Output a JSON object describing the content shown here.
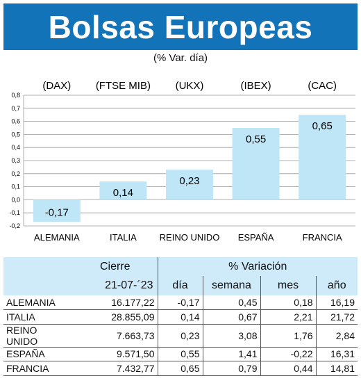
{
  "title": "Bolsas Europeas",
  "subtitle": "(% Var. día)",
  "chart_data": {
    "type": "bar",
    "categories": [
      "ALEMANIA",
      "ITALIA",
      "REINO UNIDO",
      "ESPAÑA",
      "FRANCIA"
    ],
    "indices": [
      "(DAX)",
      "(FTSE MIB)",
      "(UKX)",
      "(IBEX)",
      "(CAC)"
    ],
    "values": [
      -0.17,
      0.14,
      0.23,
      0.55,
      0.65
    ],
    "value_labels": [
      "-0,17",
      "0,14",
      "0,23",
      "0,55",
      "0,65"
    ],
    "ylim": [
      -0.2,
      0.8
    ],
    "yticks": [
      -0.2,
      -0.1,
      0.0,
      0.1,
      0.2,
      0.3,
      0.4,
      0.5,
      0.6,
      0.7,
      0.8
    ],
    "ytick_labels": [
      "-0,2",
      "-0,1",
      "0,0",
      "0,1",
      "0,2",
      "0,3",
      "0,4",
      "0,5",
      "0,6",
      "0,7",
      "0,8"
    ],
    "bar_color": "#bfe6f7",
    "grid": true
  },
  "table": {
    "header_cierre": "Cierre",
    "header_variacion": "% Variación",
    "date": "21-07-´23",
    "columns": [
      "día",
      "semana",
      "mes",
      "año"
    ],
    "rows": [
      {
        "name": "ALEMANIA",
        "cierre": "16.177,22",
        "dia": "-0,17",
        "semana": "0,45",
        "mes": "0,18",
        "ano": "16,19"
      },
      {
        "name": "ITALIA",
        "cierre": "28.855,09",
        "dia": "0,14",
        "semana": "0,67",
        "mes": "2,21",
        "ano": "21,72"
      },
      {
        "name": "REINO UNIDO",
        "cierre": "7.663,73",
        "dia": "0,23",
        "semana": "3,08",
        "mes": "1,76",
        "ano": "2,84"
      },
      {
        "name": "ESPAÑA",
        "cierre": "9.571,50",
        "dia": "0,55",
        "semana": "1,41",
        "mes": "-0,22",
        "ano": "16,31"
      },
      {
        "name": "FRANCIA",
        "cierre": "7.432,77",
        "dia": "0,65",
        "semana": "0,79",
        "mes": "0,44",
        "ano": "14,81"
      }
    ]
  },
  "colors": {
    "header_bg": "#1273b8",
    "table_header_bg": "#cfeaf8"
  }
}
